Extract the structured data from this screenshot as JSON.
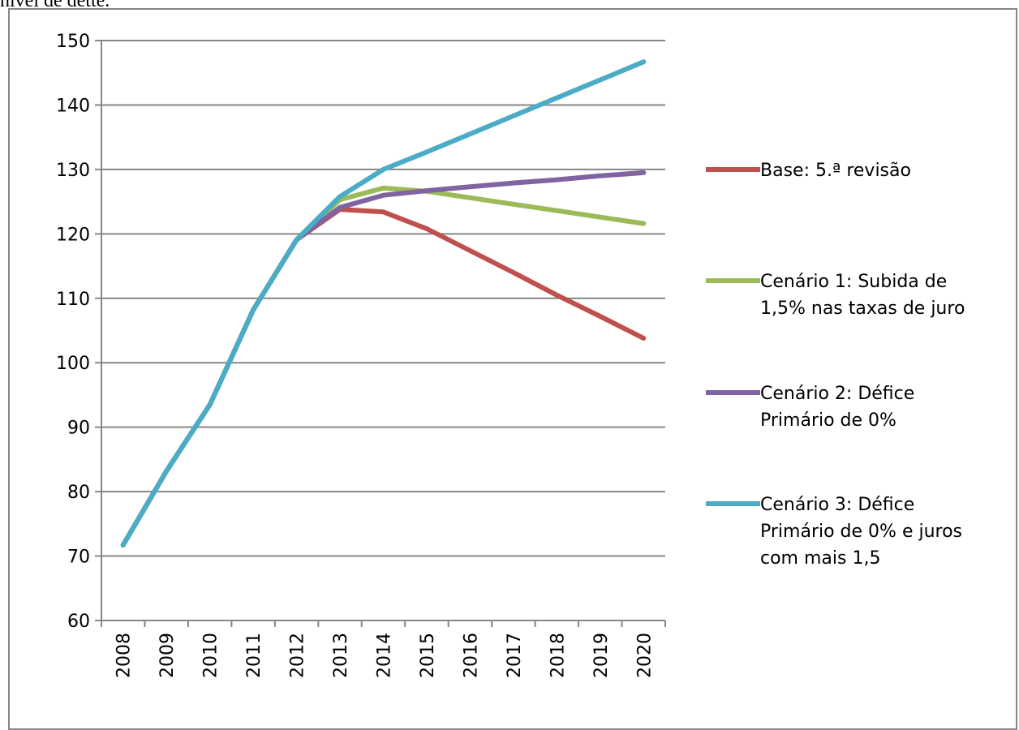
{
  "caption": {
    "text": "nível de dette."
  },
  "chart_data": {
    "type": "line",
    "title": "",
    "xlabel": "",
    "ylabel": "",
    "categories": [
      "2008",
      "2009",
      "2010",
      "2011",
      "2012",
      "2013",
      "2014",
      "2015",
      "2016",
      "2017",
      "2018",
      "2019",
      "2020"
    ],
    "ylim": [
      60,
      150
    ],
    "yticks": [
      60,
      70,
      80,
      90,
      100,
      110,
      120,
      130,
      140,
      150
    ],
    "grid": true,
    "legend_position": "right",
    "series": [
      {
        "name": "Base: 5.ª revisão",
        "legend_lines": [
          "Base: 5.ª revisão"
        ],
        "color": "#c0504d",
        "values": [
          71.7,
          83.2,
          93.5,
          108.2,
          119.1,
          123.8,
          123.4,
          120.8,
          117.4,
          114.0,
          110.5,
          107.2,
          103.8
        ]
      },
      {
        "name": "Cenário 1: Subida de 1,5% nas taxas de juro",
        "legend_lines": [
          "Cenário 1: Subida de",
          "1,5% nas taxas de juro"
        ],
        "color": "#9bbb59",
        "values": [
          71.7,
          83.2,
          93.5,
          108.2,
          119.1,
          125.3,
          127.1,
          126.6,
          125.6,
          124.6,
          123.6,
          122.6,
          121.6
        ]
      },
      {
        "name": "Cenário 2: Défice Primário de 0%",
        "legend_lines": [
          "Cenário 2: Défice",
          "Primário de 0%"
        ],
        "color": "#8064a2",
        "values": [
          71.7,
          83.2,
          93.5,
          108.2,
          119.1,
          124.1,
          126.0,
          126.7,
          127.3,
          127.9,
          128.4,
          129.0,
          129.5
        ]
      },
      {
        "name": "Cenário 3: Défice Primário de 0% e juros com mais 1,5",
        "legend_lines": [
          "Cenário 3: Défice",
          "Primário de 0% e juros",
          "com mais 1,5"
        ],
        "color": "#4bacc6",
        "values": [
          71.7,
          83.2,
          93.5,
          108.2,
          119.1,
          125.8,
          130.0,
          132.7,
          135.5,
          138.3,
          141.1,
          143.9,
          146.7
        ]
      }
    ]
  }
}
